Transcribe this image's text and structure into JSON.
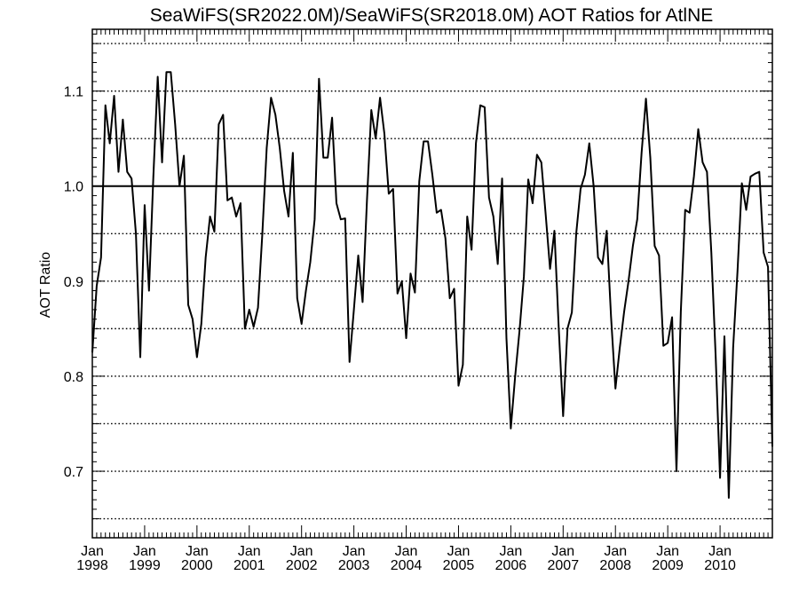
{
  "chart_data": {
    "type": "line",
    "title": "SeaWiFS(SR2022.0M)/SeaWiFS(SR2018.0M)  AOT Ratios for AtlNE",
    "xlabel": "",
    "ylabel": "AOT Ratio",
    "ylim": [
      0.63,
      1.165
    ],
    "xlim": [
      1998.0,
      2011.0
    ],
    "y_ticks": [
      0.7,
      0.8,
      0.9,
      1.0,
      1.1
    ],
    "y_ticks_labels": [
      "0.7",
      "0.8",
      "0.9",
      "1.0",
      "1.1"
    ],
    "x_ticks": [
      {
        "month": "Jan",
        "year": "1998",
        "x": 1998.0
      },
      {
        "month": "Jan",
        "year": "1999",
        "x": 1999.0
      },
      {
        "month": "Jan",
        "year": "2000",
        "x": 2000.0
      },
      {
        "month": "Jan",
        "year": "2001",
        "x": 2001.0
      },
      {
        "month": "Jan",
        "year": "2002",
        "x": 2002.0
      },
      {
        "month": "Jan",
        "year": "2003",
        "x": 2003.0
      },
      {
        "month": "Jan",
        "year": "2004",
        "x": 2004.0
      },
      {
        "month": "Jan",
        "year": "2005",
        "x": 2005.0
      },
      {
        "month": "Jan",
        "year": "2006",
        "x": 2006.0
      },
      {
        "month": "Jan",
        "year": "2007",
        "x": 2007.0
      },
      {
        "month": "Jan",
        "year": "2008",
        "x": 2008.0
      },
      {
        "month": "Jan",
        "year": "2009",
        "x": 2009.0
      },
      {
        "month": "Jan",
        "year": "2010",
        "x": 2010.0
      }
    ],
    "dotted_gridlines_y": [
      0.65,
      0.7,
      0.75,
      0.8,
      0.85,
      0.9,
      0.95,
      1.05,
      1.1,
      1.15
    ],
    "reference_line_y": 1.0,
    "grid": "horizontal dotted",
    "series": [
      {
        "name": "",
        "start": "1998-01",
        "frequency": "monthly",
        "values": [
          0.825,
          0.895,
          0.925,
          1.085,
          1.045,
          1.095,
          1.015,
          1.07,
          1.015,
          1.008,
          0.95,
          0.82,
          0.98,
          0.89,
          1.01,
          1.115,
          1.025,
          1.12,
          1.12,
          1.065,
          1.0,
          1.032,
          0.875,
          0.86,
          0.82,
          0.855,
          0.925,
          0.968,
          0.952,
          1.065,
          1.075,
          0.985,
          0.988,
          0.968,
          0.982,
          0.85,
          0.87,
          0.852,
          0.872,
          0.95,
          1.04,
          1.093,
          1.075,
          1.04,
          0.995,
          0.968,
          1.035,
          0.882,
          0.855,
          0.89,
          0.92,
          0.965,
          1.113,
          1.03,
          1.03,
          1.072,
          0.982,
          0.965,
          0.966,
          0.815,
          0.87,
          0.927,
          0.878,
          0.985,
          1.08,
          1.05,
          1.093,
          1.055,
          0.992,
          0.997,
          0.887,
          0.9,
          0.84,
          0.908,
          0.888,
          1.005,
          1.047,
          1.047,
          1.012,
          0.972,
          0.975,
          0.945,
          0.882,
          0.892,
          0.79,
          0.812,
          0.968,
          0.933,
          1.045,
          1.085,
          1.083,
          0.988,
          0.968,
          0.918,
          1.008,
          0.84,
          0.745,
          0.8,
          0.848,
          0.905,
          1.007,
          0.982,
          1.033,
          1.025,
          0.97,
          0.913,
          0.953,
          0.85,
          0.758,
          0.85,
          0.867,
          0.95,
          0.997,
          1.012,
          1.045,
          1.0,
          0.925,
          0.918,
          0.953,
          0.862,
          0.787,
          0.83,
          0.868,
          0.9,
          0.937,
          0.965,
          1.035,
          1.092,
          1.03,
          0.937,
          0.927,
          0.832,
          0.835,
          0.862,
          0.7,
          0.868,
          0.975,
          0.972,
          1.01,
          1.06,
          1.025,
          1.015,
          0.93,
          0.82,
          0.693,
          0.842,
          0.672,
          0.83,
          0.91,
          1.003,
          0.975,
          1.01,
          1.013,
          1.015,
          0.93,
          0.915,
          0.726
        ]
      }
    ]
  }
}
